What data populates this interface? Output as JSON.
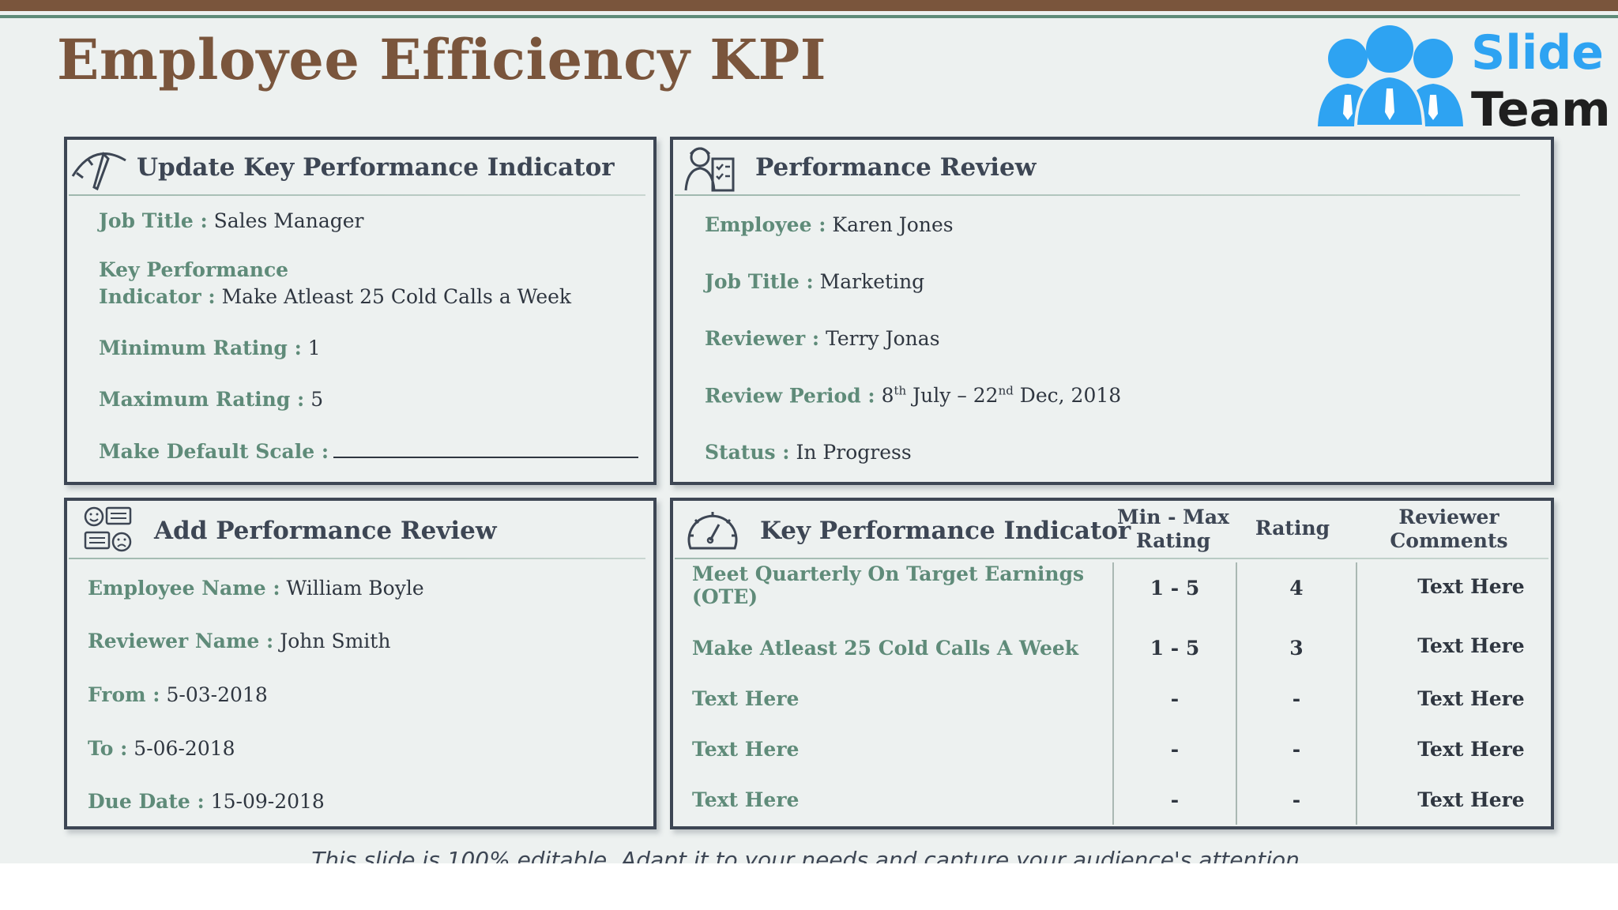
{
  "title": "Employee Efficiency KPI",
  "logo": {
    "line1": "Slide",
    "line2": "Team",
    "color": "#2ea3f2"
  },
  "colors": {
    "brown": "#7a553c",
    "green": "#5f8b79",
    "dark": "#3d4654"
  },
  "update_kpi": {
    "heading": "Update Key Performance Indicator",
    "icon": "gauge-needle-icon",
    "job_title_label": "Job Title :",
    "job_title_value": "Sales Manager",
    "kpi_label_line1": "Key Performance",
    "kpi_label_line2": "Indicator :",
    "kpi_value": "Make Atleast 25 Cold Calls a Week",
    "min_label": "Minimum Rating :",
    "min_value": "1",
    "max_label": "Maximum Rating :",
    "max_value": "5",
    "scale_label": "Make Default Scale :"
  },
  "performance_review": {
    "heading": "Performance Review",
    "icon": "reviewer-checklist-icon",
    "employee_label": "Employee :",
    "employee_value": "Karen Jones",
    "job_label": "Job Title :",
    "job_value": "Marketing",
    "reviewer_label": "Reviewer :",
    "reviewer_value": "Terry Jonas",
    "period_label": "Review Period :",
    "period_day1": "8",
    "period_sup1": "th",
    "period_mid": " July – 22",
    "period_sup2": "nd",
    "period_end": " Dec, 2018",
    "status_label": "Status :",
    "status_value": "In Progress"
  },
  "add_review": {
    "heading": "Add Performance Review",
    "icon": "feedback-faces-icon",
    "emp_label": "Employee Name :",
    "emp_value": "William Boyle",
    "rev_label": "Reviewer Name :",
    "rev_value": "John Smith",
    "from_label": "From :",
    "from_value": "5-03-2018",
    "to_label": "To :",
    "to_value": "5-06-2018",
    "due_label": "Due Date :",
    "due_value": "15-09-2018"
  },
  "kpi_table": {
    "heading": "Key Performance Indicator",
    "icon": "speedometer-icon",
    "col_minmax_1": "Min - Max",
    "col_minmax_2": "Rating",
    "col_rating": "Rating",
    "col_comments_1": "Reviewer",
    "col_comments_2": "Comments",
    "rows": [
      {
        "kpi_line1": "Meet Quarterly On Target Earnings",
        "kpi_line2": "(OTE)",
        "minmax": "1 - 5",
        "rating": "4",
        "comment": "Text Here"
      },
      {
        "kpi_line1": "Make Atleast 25 Cold Calls A Week",
        "kpi_line2": "",
        "minmax": "1 - 5",
        "rating": "3",
        "comment": "Text Here"
      },
      {
        "kpi_line1": "Text Here",
        "kpi_line2": "",
        "minmax": "-",
        "rating": "-",
        "comment": "Text Here"
      },
      {
        "kpi_line1": "Text Here",
        "kpi_line2": "",
        "minmax": "-",
        "rating": "-",
        "comment": "Text Here"
      },
      {
        "kpi_line1": "Text Here",
        "kpi_line2": "",
        "minmax": "-",
        "rating": "-",
        "comment": "Text Here"
      }
    ]
  },
  "footer": "This slide is 100% editable. Adapt it to your needs and capture your audience's attention."
}
